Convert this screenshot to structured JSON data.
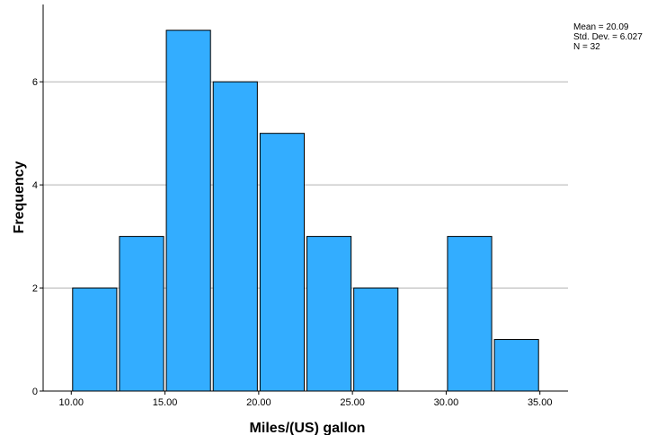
{
  "chart_data": {
    "type": "bar",
    "subtype": "histogram",
    "xlabel": "Miles/(US) gallon",
    "ylabel": "Frequency",
    "bins": [
      {
        "start": 10.0,
        "end": 12.5,
        "count": 2
      },
      {
        "start": 12.5,
        "end": 15.0,
        "count": 3
      },
      {
        "start": 15.0,
        "end": 17.5,
        "count": 7
      },
      {
        "start": 17.5,
        "end": 20.0,
        "count": 6
      },
      {
        "start": 20.0,
        "end": 22.5,
        "count": 5
      },
      {
        "start": 22.5,
        "end": 25.0,
        "count": 3
      },
      {
        "start": 25.0,
        "end": 27.5,
        "count": 2
      },
      {
        "start": 27.5,
        "end": 30.0,
        "count": 0
      },
      {
        "start": 30.0,
        "end": 32.5,
        "count": 3
      },
      {
        "start": 32.5,
        "end": 35.0,
        "count": 1
      }
    ],
    "xlim": [
      8.5,
      36.5
    ],
    "ylim": [
      0,
      7.5
    ],
    "x_ticks": [
      10,
      15,
      20,
      25,
      30,
      35
    ],
    "x_tick_labels": [
      "10.00",
      "15.00",
      "20.00",
      "25.00",
      "30.00",
      "35.00"
    ],
    "y_ticks": [
      0,
      2,
      4,
      6
    ],
    "y_tick_labels": [
      "0",
      "2",
      "4",
      "6"
    ],
    "grid": "horizontal",
    "bar_color": "#33adff",
    "bar_edge_color": "#000000",
    "legend": "none"
  },
  "stats": {
    "mean": "Mean = 20.09",
    "std_dev": "Std. Dev. = 6.027",
    "n": "N = 32"
  }
}
